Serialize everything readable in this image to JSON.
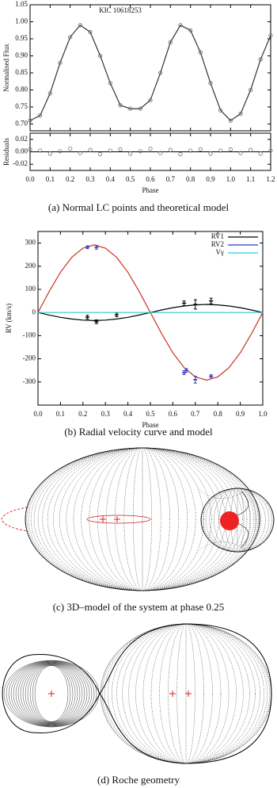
{
  "chart_data": [
    {
      "type": "line",
      "annotation": "KIC 10618253",
      "ylabel": "Normalised Flux",
      "xlabel": "Phase",
      "x": [
        0,
        0.05,
        0.1,
        0.15,
        0.2,
        0.25,
        0.3,
        0.35,
        0.4,
        0.45,
        0.5,
        0.55,
        0.6,
        0.65,
        0.7,
        0.75,
        0.8,
        0.85,
        0.9,
        0.95,
        1.0,
        1.05,
        1.1,
        1.15,
        1.2
      ],
      "series": [
        {
          "color": "#333333",
          "values": [
            0.71,
            0.725,
            0.79,
            0.88,
            0.955,
            0.99,
            0.97,
            0.9,
            0.82,
            0.755,
            0.745,
            0.745,
            0.77,
            0.85,
            0.94,
            0.99,
            0.975,
            0.91,
            0.82,
            0.74,
            0.71,
            0.73,
            0.8,
            0.89,
            0.96
          ]
        }
      ],
      "xlim": [
        0,
        1.2
      ],
      "xticks": [
        {
          "value": 0,
          "label": "0.0"
        },
        {
          "value": 0.1,
          "label": "0.1"
        },
        {
          "value": 0.2,
          "label": "0.2"
        },
        {
          "value": 0.3,
          "label": "0.3"
        },
        {
          "value": 0.4,
          "label": "0.4"
        },
        {
          "value": 0.5,
          "label": "0.5"
        },
        {
          "value": 0.6,
          "label": "0.6"
        },
        {
          "value": 0.7,
          "label": "0.7"
        },
        {
          "value": 0.8,
          "label": "0.8"
        },
        {
          "value": 0.9,
          "label": "0.9"
        },
        {
          "value": 1.0,
          "label": "1.0"
        },
        {
          "value": 1.1,
          "label": "1.1"
        },
        {
          "value": 1.2,
          "label": "1.2"
        }
      ],
      "ylim": [
        0.68,
        1.05
      ],
      "yticks": [
        {
          "value": 0.7,
          "label": "0.70"
        },
        {
          "value": 0.75,
          "label": "0.75"
        },
        {
          "value": 0.8,
          "label": "0.80"
        },
        {
          "value": 0.85,
          "label": "0.85"
        },
        {
          "value": 0.9,
          "label": "0.90"
        },
        {
          "value": 0.95,
          "label": "0.95"
        },
        {
          "value": 1.0,
          "label": "1.00"
        },
        {
          "value": 1.05,
          "label": "1.05"
        }
      ],
      "residuals": {
        "ylabel": "Residuals",
        "color": "#777777",
        "values": [
          0.004,
          0.002,
          -0.003,
          0.001,
          0.005,
          -0.002,
          0.003,
          -0.004,
          0.002,
          0.004,
          -0.003,
          0.001,
          0.005,
          -0.002,
          0.003,
          -0.004,
          0.002,
          0.004,
          -0.003,
          0.002,
          0.004,
          -0.002,
          0.003,
          -0.003,
          0.002
        ],
        "ylim": [
          -0.03,
          0.03
        ],
        "yticks": [
          {
            "value": 0.02,
            "label": "0.02"
          },
          {
            "value": 0,
            "label": "0.00"
          },
          {
            "value": -0.02,
            "label": "-0.02"
          }
        ]
      }
    },
    {
      "type": "line",
      "ylabel": "RV (km/s)",
      "xlabel": "Phase",
      "xlim": [
        0,
        1
      ],
      "xticks": [
        {
          "value": 0,
          "label": "0.0"
        },
        {
          "value": 0.1,
          "label": "0.1"
        },
        {
          "value": 0.2,
          "label": "0.2"
        },
        {
          "value": 0.3,
          "label": "0.3"
        },
        {
          "value": 0.4,
          "label": "0.4"
        },
        {
          "value": 0.5,
          "label": "0.5"
        },
        {
          "value": 0.6,
          "label": "0.6"
        },
        {
          "value": 0.7,
          "label": "0.7"
        },
        {
          "value": 0.8,
          "label": "0.8"
        },
        {
          "value": 0.9,
          "label": "0.9"
        },
        {
          "value": 1.0,
          "label": "1.0"
        }
      ],
      "ylim": [
        -400,
        350
      ],
      "yticks": [
        -300,
        -200,
        -100,
        0,
        100,
        200,
        300
      ],
      "series": [
        {
          "name": "RV1",
          "color": "#000000",
          "x": [
            0.22,
            0.26,
            0.35,
            0.65,
            0.7,
            0.77
          ],
          "values": [
            -20,
            -40,
            -10,
            40,
            35,
            50
          ],
          "errors": [
            8,
            8,
            8,
            10,
            20,
            12
          ]
        },
        {
          "name": "RV2",
          "color": "#3333cc",
          "x": [
            0.22,
            0.26,
            0.65,
            0.66,
            0.7,
            0.77
          ],
          "values": [
            282,
            282,
            -260,
            -250,
            -290,
            -275
          ],
          "errors": [
            6,
            8,
            8,
            8,
            15,
            6
          ]
        },
        {
          "name": "Vγ",
          "color": "#33cccc",
          "x": [
            0,
            1
          ],
          "values": [
            0,
            0
          ]
        }
      ],
      "model_x": [
        0,
        0.05,
        0.1,
        0.15,
        0.2,
        0.25,
        0.3,
        0.35,
        0.4,
        0.45,
        0.5,
        0.55,
        0.6,
        0.65,
        0.7,
        0.75,
        0.8,
        0.85,
        0.9,
        0.95,
        1.0
      ],
      "models": [
        {
          "color": "#000000",
          "values": [
            0,
            -11,
            -21,
            -28,
            -33,
            -35,
            -33,
            -28,
            -21,
            -11,
            0,
            11,
            21,
            28,
            33,
            35,
            33,
            28,
            21,
            11,
            0
          ]
        },
        {
          "color": "#cc3322",
          "values": [
            0,
            91,
            174,
            238,
            278,
            292,
            278,
            238,
            174,
            91,
            0,
            -91,
            -174,
            -238,
            -278,
            -292,
            -278,
            -238,
            -174,
            -91,
            0
          ]
        }
      ]
    }
  ],
  "captions": [
    "(a) Normal LC points and theoretical model",
    "(b) Radial velocity curve and model",
    "(c) 3D–model of the system at phase 0.25",
    "(d) Roche geometry"
  ]
}
